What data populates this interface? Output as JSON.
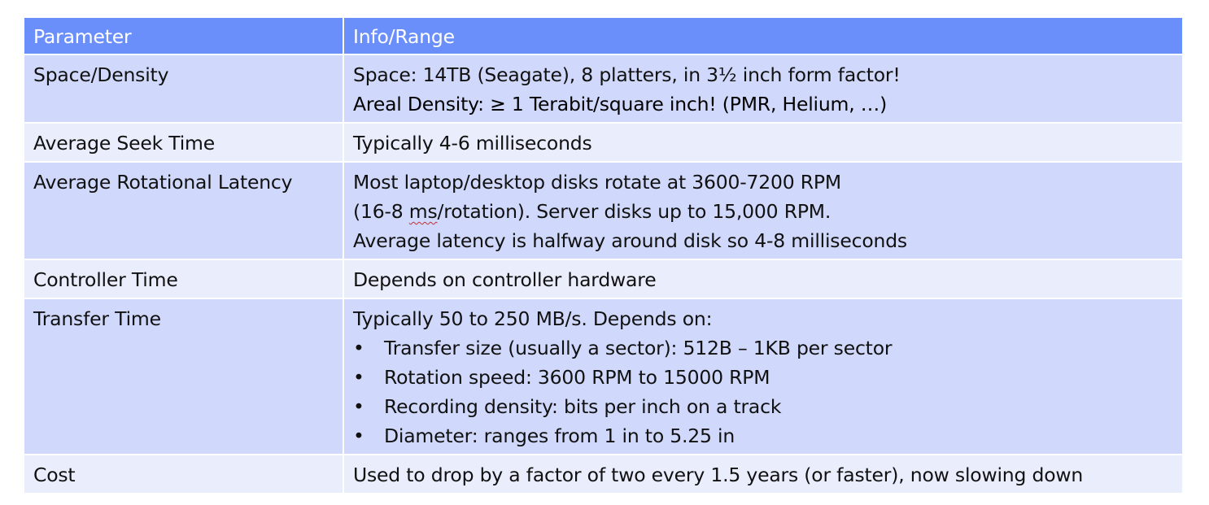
{
  "header": {
    "col1": "Parameter",
    "col2": "Info/Range"
  },
  "rows": {
    "space": {
      "param": "Space/Density",
      "line1": "Space: 14TB (Seagate), 8 platters, in 3½ inch form factor!",
      "line2": "Areal Density: ≥ 1 Terabit/square inch! (PMR, Helium, …)"
    },
    "seek": {
      "param": "Average Seek Time",
      "line1": "Typically 4-6 milliseconds"
    },
    "rotational": {
      "param": "Average Rotational Latency",
      "line1": "Most laptop/desktop disks rotate at 3600-7200 RPM",
      "line2_pre": "(16-8 ",
      "line2_mark": "ms",
      "line2_post": "/rotation). Server disks up to 15,000 RPM.",
      "line3": "Average latency is halfway around disk so 4-8 milliseconds"
    },
    "controller": {
      "param": "Controller Time",
      "line1": "Depends on controller hardware"
    },
    "transfer": {
      "param": "Transfer Time",
      "line1": "Typically 50 to 250 MB/s. Depends on:",
      "bullet_char": "•",
      "bullets": [
        "Transfer size (usually a sector): 512B – 1KB per sector",
        "Rotation speed: 3600 RPM to 15000 RPM",
        "Recording density: bits per inch on a track",
        "Diameter: ranges from  1 in to 5.25 in"
      ]
    },
    "cost": {
      "param": "Cost",
      "line1": "Used to drop by a factor of two every 1.5 years (or faster), now slowing down"
    }
  }
}
